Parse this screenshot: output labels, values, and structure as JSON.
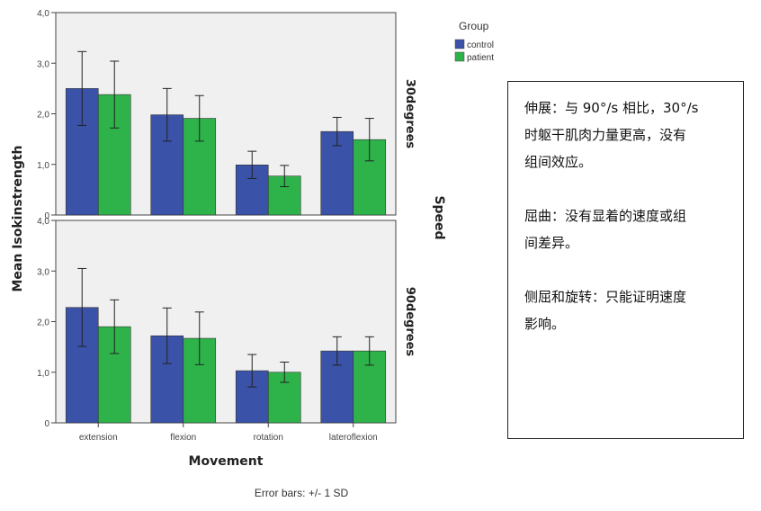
{
  "chart_data": {
    "type": "bar",
    "categories": [
      "extension",
      "flexion",
      "rotation",
      "lateroflexion"
    ],
    "xlabel": "Movement",
    "ylabel": "Mean Isokinstrength",
    "ylim": [
      0,
      4
    ],
    "yticks": [
      "0",
      "1,0",
      "2,0",
      "3,0",
      "4,0"
    ],
    "facet_label": "Speed",
    "legend_title": "Group",
    "legend_position": "top-right",
    "footnote": "Error bars: +/- 1 SD",
    "colors": {
      "control": "#3a52a8",
      "patient": "#2db34a"
    },
    "panels": [
      {
        "label": "30degrees",
        "series": [
          {
            "name": "control",
            "values": [
              2.5,
              1.98,
              0.99,
              1.65
            ],
            "sd": [
              0.73,
              0.52,
              0.27,
              0.28
            ]
          },
          {
            "name": "patient",
            "values": [
              2.38,
              1.91,
              0.77,
              1.49
            ],
            "sd": [
              0.66,
              0.45,
              0.21,
              0.42
            ]
          }
        ]
      },
      {
        "label": "90degrees",
        "series": [
          {
            "name": "control",
            "values": [
              2.28,
              1.72,
              1.03,
              1.42
            ],
            "sd": [
              0.77,
              0.55,
              0.32,
              0.28
            ]
          },
          {
            "name": "patient",
            "values": [
              1.9,
              1.67,
              1.0,
              1.42
            ],
            "sd": [
              0.53,
              0.52,
              0.2,
              0.28
            ]
          }
        ]
      }
    ]
  },
  "note": {
    "paragraphs": [
      "伸展：与 90°/s 相比，30°/s\n时躯干肌肉力量更高，没有\n组间效应。",
      "屈曲：没有显着的速度或组\n间差异。",
      "侧屈和旋转：只能证明速度\n影响。"
    ]
  }
}
